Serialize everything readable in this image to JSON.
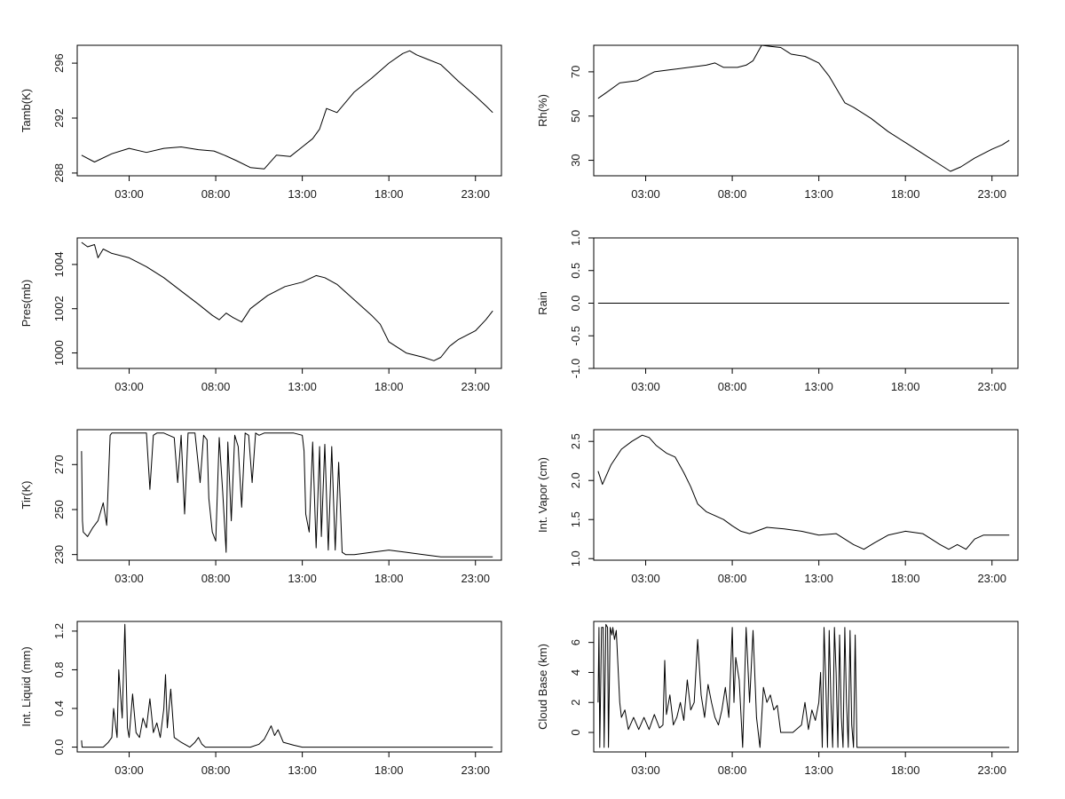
{
  "chart_data": [
    {
      "type": "line",
      "ylabel": "Tamb(K)",
      "xlim": [
        0,
        24.5
      ],
      "ylim": [
        287.8,
        297.3
      ],
      "xticks": [
        3,
        8,
        13,
        18,
        23
      ],
      "xtick_labels": [
        "03:00",
        "08:00",
        "13:00",
        "18:00",
        "23:00"
      ],
      "yticks": [
        288,
        292,
        296
      ],
      "ytick_labels": [
        "288",
        "292",
        "296"
      ],
      "series": [
        {
          "name": "Tamb",
          "x": [
            0.25,
            1.0,
            2.0,
            3.0,
            4.0,
            5.0,
            6.0,
            7.0,
            7.9,
            8.5,
            9.2,
            10.0,
            10.8,
            11.5,
            12.3,
            13.0,
            13.6,
            14.0,
            14.4,
            15.0,
            16.0,
            17.0,
            18.0,
            18.8,
            19.2,
            19.6,
            20.2,
            21.0,
            22.0,
            23.0,
            23.6,
            24.0
          ],
          "y": [
            289.3,
            288.8,
            289.4,
            289.8,
            289.5,
            289.8,
            289.9,
            289.7,
            289.6,
            289.3,
            288.9,
            288.4,
            288.3,
            289.3,
            289.2,
            289.9,
            290.5,
            291.2,
            292.7,
            292.4,
            293.9,
            294.9,
            296.0,
            296.7,
            296.9,
            296.6,
            296.3,
            295.9,
            294.7,
            293.6,
            292.9,
            292.4
          ]
        }
      ]
    },
    {
      "type": "line",
      "ylabel": "Rh(%)",
      "xlim": [
        0,
        24.5
      ],
      "ylim": [
        23,
        82
      ],
      "xticks": [
        3,
        8,
        13,
        18,
        23
      ],
      "xtick_labels": [
        "03:00",
        "08:00",
        "13:00",
        "18:00",
        "23:00"
      ],
      "yticks": [
        30,
        50,
        70
      ],
      "ytick_labels": [
        "30",
        "50",
        "70"
      ],
      "series": [
        {
          "name": "Rh",
          "x": [
            0.25,
            0.8,
            1.5,
            2.5,
            3.0,
            3.5,
            4.5,
            5.5,
            6.5,
            7.0,
            7.5,
            8.3,
            8.8,
            9.2,
            9.7,
            10.2,
            10.8,
            11.4,
            12.2,
            13.0,
            13.6,
            14.2,
            14.5,
            15.0,
            16.0,
            17.0,
            18.0,
            19.0,
            20.0,
            20.6,
            21.2,
            22.0,
            23.0,
            23.6,
            24.0
          ],
          "y": [
            58,
            61,
            65,
            66,
            68,
            70,
            71,
            72,
            73,
            74,
            72,
            72,
            73,
            75,
            82,
            81.5,
            81,
            78,
            77,
            74,
            68,
            60,
            56,
            54,
            49,
            43,
            38,
            33,
            28,
            25,
            27,
            31,
            35,
            37,
            39
          ]
        }
      ]
    },
    {
      "type": "line",
      "ylabel": "Pres(mb)",
      "xlim": [
        0,
        24.5
      ],
      "ylim": [
        999.3,
        1005.2
      ],
      "xticks": [
        3,
        8,
        13,
        18,
        23
      ],
      "xtick_labels": [
        "03:00",
        "08:00",
        "13:00",
        "18:00",
        "23:00"
      ],
      "yticks": [
        1000,
        1002,
        1004
      ],
      "ytick_labels": [
        "1000",
        "1002",
        "1004"
      ],
      "series": [
        {
          "name": "Pres",
          "x": [
            0.25,
            0.6,
            1.0,
            1.2,
            1.5,
            2.0,
            3.0,
            4.0,
            5.0,
            6.0,
            7.0,
            7.8,
            8.2,
            8.6,
            9.0,
            9.5,
            10.0,
            11.0,
            12.0,
            13.0,
            13.8,
            14.3,
            15.0,
            16.0,
            17.0,
            17.5,
            18.0,
            19.0,
            20.0,
            20.6,
            21.0,
            21.5,
            22.0,
            23.0,
            23.6,
            24.0
          ],
          "y": [
            1005.0,
            1004.8,
            1004.9,
            1004.3,
            1004.7,
            1004.5,
            1004.3,
            1003.9,
            1003.4,
            1002.8,
            1002.2,
            1001.7,
            1001.5,
            1001.8,
            1001.6,
            1001.4,
            1002.0,
            1002.6,
            1003.0,
            1003.2,
            1003.5,
            1003.4,
            1003.1,
            1002.4,
            1001.7,
            1001.3,
            1000.5,
            1000.0,
            999.8,
            999.65,
            999.8,
            1000.3,
            1000.6,
            1001.0,
            1001.5,
            1001.9
          ]
        }
      ]
    },
    {
      "type": "line",
      "ylabel": "Rain",
      "xlim": [
        0,
        24.5
      ],
      "ylim": [
        -1.0,
        1.0
      ],
      "xticks": [
        3,
        8,
        13,
        18,
        23
      ],
      "xtick_labels": [
        "03:00",
        "08:00",
        "13:00",
        "18:00",
        "23:00"
      ],
      "yticks": [
        -1.0,
        -0.5,
        0.0,
        0.5,
        1.0
      ],
      "ytick_labels": [
        "-1.0",
        "-0.5",
        "0.0",
        "0.5",
        "1.0"
      ],
      "series": [
        {
          "name": "Rain",
          "x": [
            0.25,
            24.0
          ],
          "y": [
            0,
            0
          ]
        }
      ]
    },
    {
      "type": "line",
      "ylabel": "Tir(K)",
      "xlim": [
        0,
        24.5
      ],
      "ylim": [
        227.5,
        285.5
      ],
      "xticks": [
        3,
        8,
        13,
        18,
        23
      ],
      "xtick_labels": [
        "03:00",
        "08:00",
        "13:00",
        "18:00",
        "23:00"
      ],
      "yticks": [
        230,
        250,
        270
      ],
      "ytick_labels": [
        "230",
        "250",
        "270"
      ],
      "series": [
        {
          "name": "Tir",
          "x": [
            0.25,
            0.3,
            0.35,
            0.6,
            0.9,
            1.2,
            1.5,
            1.7,
            1.9,
            2.0,
            2.2,
            3.0,
            4.0,
            4.2,
            4.4,
            4.6,
            5.0,
            5.6,
            5.8,
            6.0,
            6.2,
            6.4,
            6.8,
            7.1,
            7.3,
            7.5,
            7.6,
            7.8,
            8.0,
            8.2,
            8.4,
            8.6,
            8.7,
            8.9,
            9.1,
            9.3,
            9.5,
            9.7,
            9.9,
            10.1,
            10.3,
            10.5,
            10.8,
            11.5,
            12.0,
            12.5,
            13.0,
            13.1,
            13.2,
            13.4,
            13.6,
            13.8,
            14.0,
            14.1,
            14.3,
            14.5,
            14.7,
            14.9,
            15.1,
            15.3,
            15.5,
            16.0,
            17.0,
            18.0,
            19.0,
            20.0,
            21.0,
            22.0,
            23.0,
            24.0
          ],
          "y": [
            276,
            245,
            240,
            238,
            242,
            245,
            253,
            243,
            283,
            284,
            284,
            284,
            284,
            259,
            283,
            284,
            284,
            282,
            262,
            283,
            248,
            284,
            284,
            262,
            283,
            281,
            255,
            240,
            236,
            282,
            258,
            231,
            280,
            245,
            283,
            278,
            251,
            284,
            283,
            262,
            284,
            283,
            284,
            284,
            284,
            284,
            283,
            276,
            248,
            240,
            280,
            233,
            278,
            238,
            279,
            232,
            278,
            232,
            271,
            231,
            230,
            230,
            231,
            232,
            231,
            230,
            229,
            229,
            229,
            229
          ]
        }
      ]
    },
    {
      "type": "line",
      "ylabel": "Int. Vapor (cm)",
      "xlim": [
        0,
        24.5
      ],
      "ylim": [
        0.98,
        2.65
      ],
      "xticks": [
        3,
        8,
        13,
        18,
        23
      ],
      "xtick_labels": [
        "03:00",
        "08:00",
        "13:00",
        "18:00",
        "23:00"
      ],
      "yticks": [
        1.0,
        1.5,
        2.0,
        2.5
      ],
      "ytick_labels": [
        "1.0",
        "1.5",
        "2.0",
        "2.5"
      ],
      "series": [
        {
          "name": "IntVapor",
          "x": [
            0.25,
            0.5,
            1.0,
            1.6,
            2.2,
            2.8,
            3.2,
            3.6,
            4.2,
            4.7,
            5.2,
            5.6,
            6.0,
            6.5,
            7.0,
            7.5,
            8.0,
            8.5,
            9.0,
            10.0,
            11.0,
            12.0,
            13.0,
            14.0,
            15.0,
            15.6,
            16.2,
            17.0,
            18.0,
            19.0,
            19.5,
            20.0,
            20.5,
            21.0,
            21.5,
            22.0,
            22.5,
            23.0,
            24.0
          ],
          "y": [
            2.12,
            1.95,
            2.2,
            2.4,
            2.5,
            2.58,
            2.55,
            2.45,
            2.35,
            2.3,
            2.1,
            1.92,
            1.7,
            1.6,
            1.55,
            1.5,
            1.42,
            1.35,
            1.32,
            1.4,
            1.38,
            1.35,
            1.3,
            1.32,
            1.18,
            1.12,
            1.2,
            1.3,
            1.35,
            1.32,
            1.25,
            1.18,
            1.12,
            1.18,
            1.12,
            1.25,
            1.3,
            1.3,
            1.3
          ]
        }
      ]
    },
    {
      "type": "line",
      "ylabel": "Int. Liquid (mm)",
      "xlim": [
        0,
        24.5
      ],
      "ylim": [
        -0.05,
        1.3
      ],
      "xticks": [
        3,
        8,
        13,
        18,
        23
      ],
      "xtick_labels": [
        "03:00",
        "08:00",
        "13:00",
        "18:00",
        "23:00"
      ],
      "yticks": [
        0.0,
        0.4,
        0.8,
        1.2
      ],
      "ytick_labels": [
        "0.0",
        "0.4",
        "0.8",
        "1.2"
      ],
      "series": [
        {
          "name": "IntLiquid",
          "x": [
            0.25,
            0.28,
            0.31,
            1.5,
            1.8,
            2.0,
            2.1,
            2.3,
            2.4,
            2.6,
            2.75,
            2.9,
            3.0,
            3.2,
            3.4,
            3.6,
            3.8,
            4.0,
            4.2,
            4.4,
            4.6,
            4.8,
            5.0,
            5.1,
            5.2,
            5.4,
            5.6,
            6.0,
            6.5,
            6.8,
            7.0,
            7.2,
            7.4,
            7.6,
            8.0,
            9.0,
            10.0,
            10.5,
            10.8,
            11.0,
            11.2,
            11.4,
            11.6,
            11.9,
            12.5,
            13.0,
            13.5,
            13.8,
            14.0,
            15.0,
            24.0
          ],
          "y": [
            0.07,
            0.0,
            0.0,
            0.0,
            0.05,
            0.1,
            0.4,
            0.1,
            0.8,
            0.3,
            1.27,
            0.2,
            0.1,
            0.55,
            0.15,
            0.1,
            0.3,
            0.2,
            0.5,
            0.15,
            0.25,
            0.1,
            0.4,
            0.75,
            0.2,
            0.6,
            0.1,
            0.05,
            0.0,
            0.05,
            0.1,
            0.03,
            0.0,
            0.0,
            0.0,
            0.0,
            0.0,
            0.03,
            0.08,
            0.15,
            0.22,
            0.12,
            0.18,
            0.05,
            0.02,
            0.0,
            0.0,
            0.0,
            0.0,
            0.0,
            0.0
          ]
        }
      ]
    },
    {
      "type": "line",
      "ylabel": "Cloud Base (km)",
      "xlim": [
        0,
        24.5
      ],
      "ylim": [
        -1.3,
        7.4
      ],
      "xticks": [
        3,
        8,
        13,
        18,
        23
      ],
      "xtick_labels": [
        "03:00",
        "08:00",
        "13:00",
        "18:00",
        "23:00"
      ],
      "yticks": [
        0,
        2,
        4,
        6
      ],
      "ytick_labels": [
        "0",
        "2",
        "4",
        "6"
      ],
      "series": [
        {
          "name": "CloudBase",
          "x": [
            0.25,
            0.3,
            0.35,
            0.45,
            0.55,
            0.6,
            0.7,
            0.8,
            0.85,
            0.95,
            1.05,
            1.1,
            1.2,
            1.3,
            1.5,
            1.6,
            1.8,
            2.0,
            2.3,
            2.6,
            2.9,
            3.2,
            3.5,
            3.8,
            4.0,
            4.1,
            4.2,
            4.4,
            4.6,
            4.8,
            5.0,
            5.2,
            5.4,
            5.6,
            5.8,
            6.0,
            6.2,
            6.4,
            6.6,
            6.8,
            7.0,
            7.2,
            7.4,
            7.6,
            7.8,
            8.0,
            8.1,
            8.2,
            8.4,
            8.6,
            8.8,
            9.0,
            9.2,
            9.4,
            9.6,
            9.8,
            10.0,
            10.2,
            10.4,
            10.6,
            10.8,
            11.0,
            11.5,
            12.0,
            12.2,
            12.4,
            12.6,
            12.8,
            13.0,
            13.1,
            13.2,
            13.3,
            13.4,
            13.5,
            13.6,
            13.7,
            13.8,
            13.9,
            14.0,
            14.1,
            14.2,
            14.3,
            14.4,
            14.5,
            14.6,
            14.7,
            14.8,
            14.9,
            15.0,
            15.1,
            15.2,
            16.0,
            24.0
          ],
          "y": [
            2.0,
            7.0,
            -1.0,
            7.0,
            7.0,
            -1.0,
            7.2,
            7.0,
            -1.0,
            7.0,
            6.5,
            7.0,
            6.2,
            6.8,
            2.0,
            1.0,
            1.5,
            0.2,
            1.0,
            0.2,
            1.0,
            0.2,
            1.2,
            0.3,
            0.5,
            4.8,
            1.2,
            2.5,
            0.5,
            1.0,
            2.0,
            0.8,
            3.5,
            1.5,
            2.0,
            6.2,
            2.5,
            1.0,
            3.2,
            2.0,
            1.0,
            0.5,
            1.5,
            3.0,
            1.0,
            7.0,
            2.0,
            5.0,
            3.5,
            -1.0,
            7.0,
            2.0,
            6.8,
            1.0,
            -1.0,
            3.0,
            2.0,
            2.5,
            1.5,
            1.8,
            0.0,
            0.0,
            0.0,
            0.5,
            2.0,
            0.2,
            1.5,
            0.8,
            2.0,
            4.0,
            -1.0,
            7.0,
            3.5,
            -1.0,
            6.8,
            2.0,
            -1.0,
            7.0,
            4.0,
            -1.0,
            6.5,
            1.0,
            -1.0,
            7.0,
            2.0,
            -1.0,
            6.8,
            0.5,
            -1.0,
            6.5,
            -1.0,
            -1.0,
            -1.0
          ]
        }
      ]
    }
  ]
}
